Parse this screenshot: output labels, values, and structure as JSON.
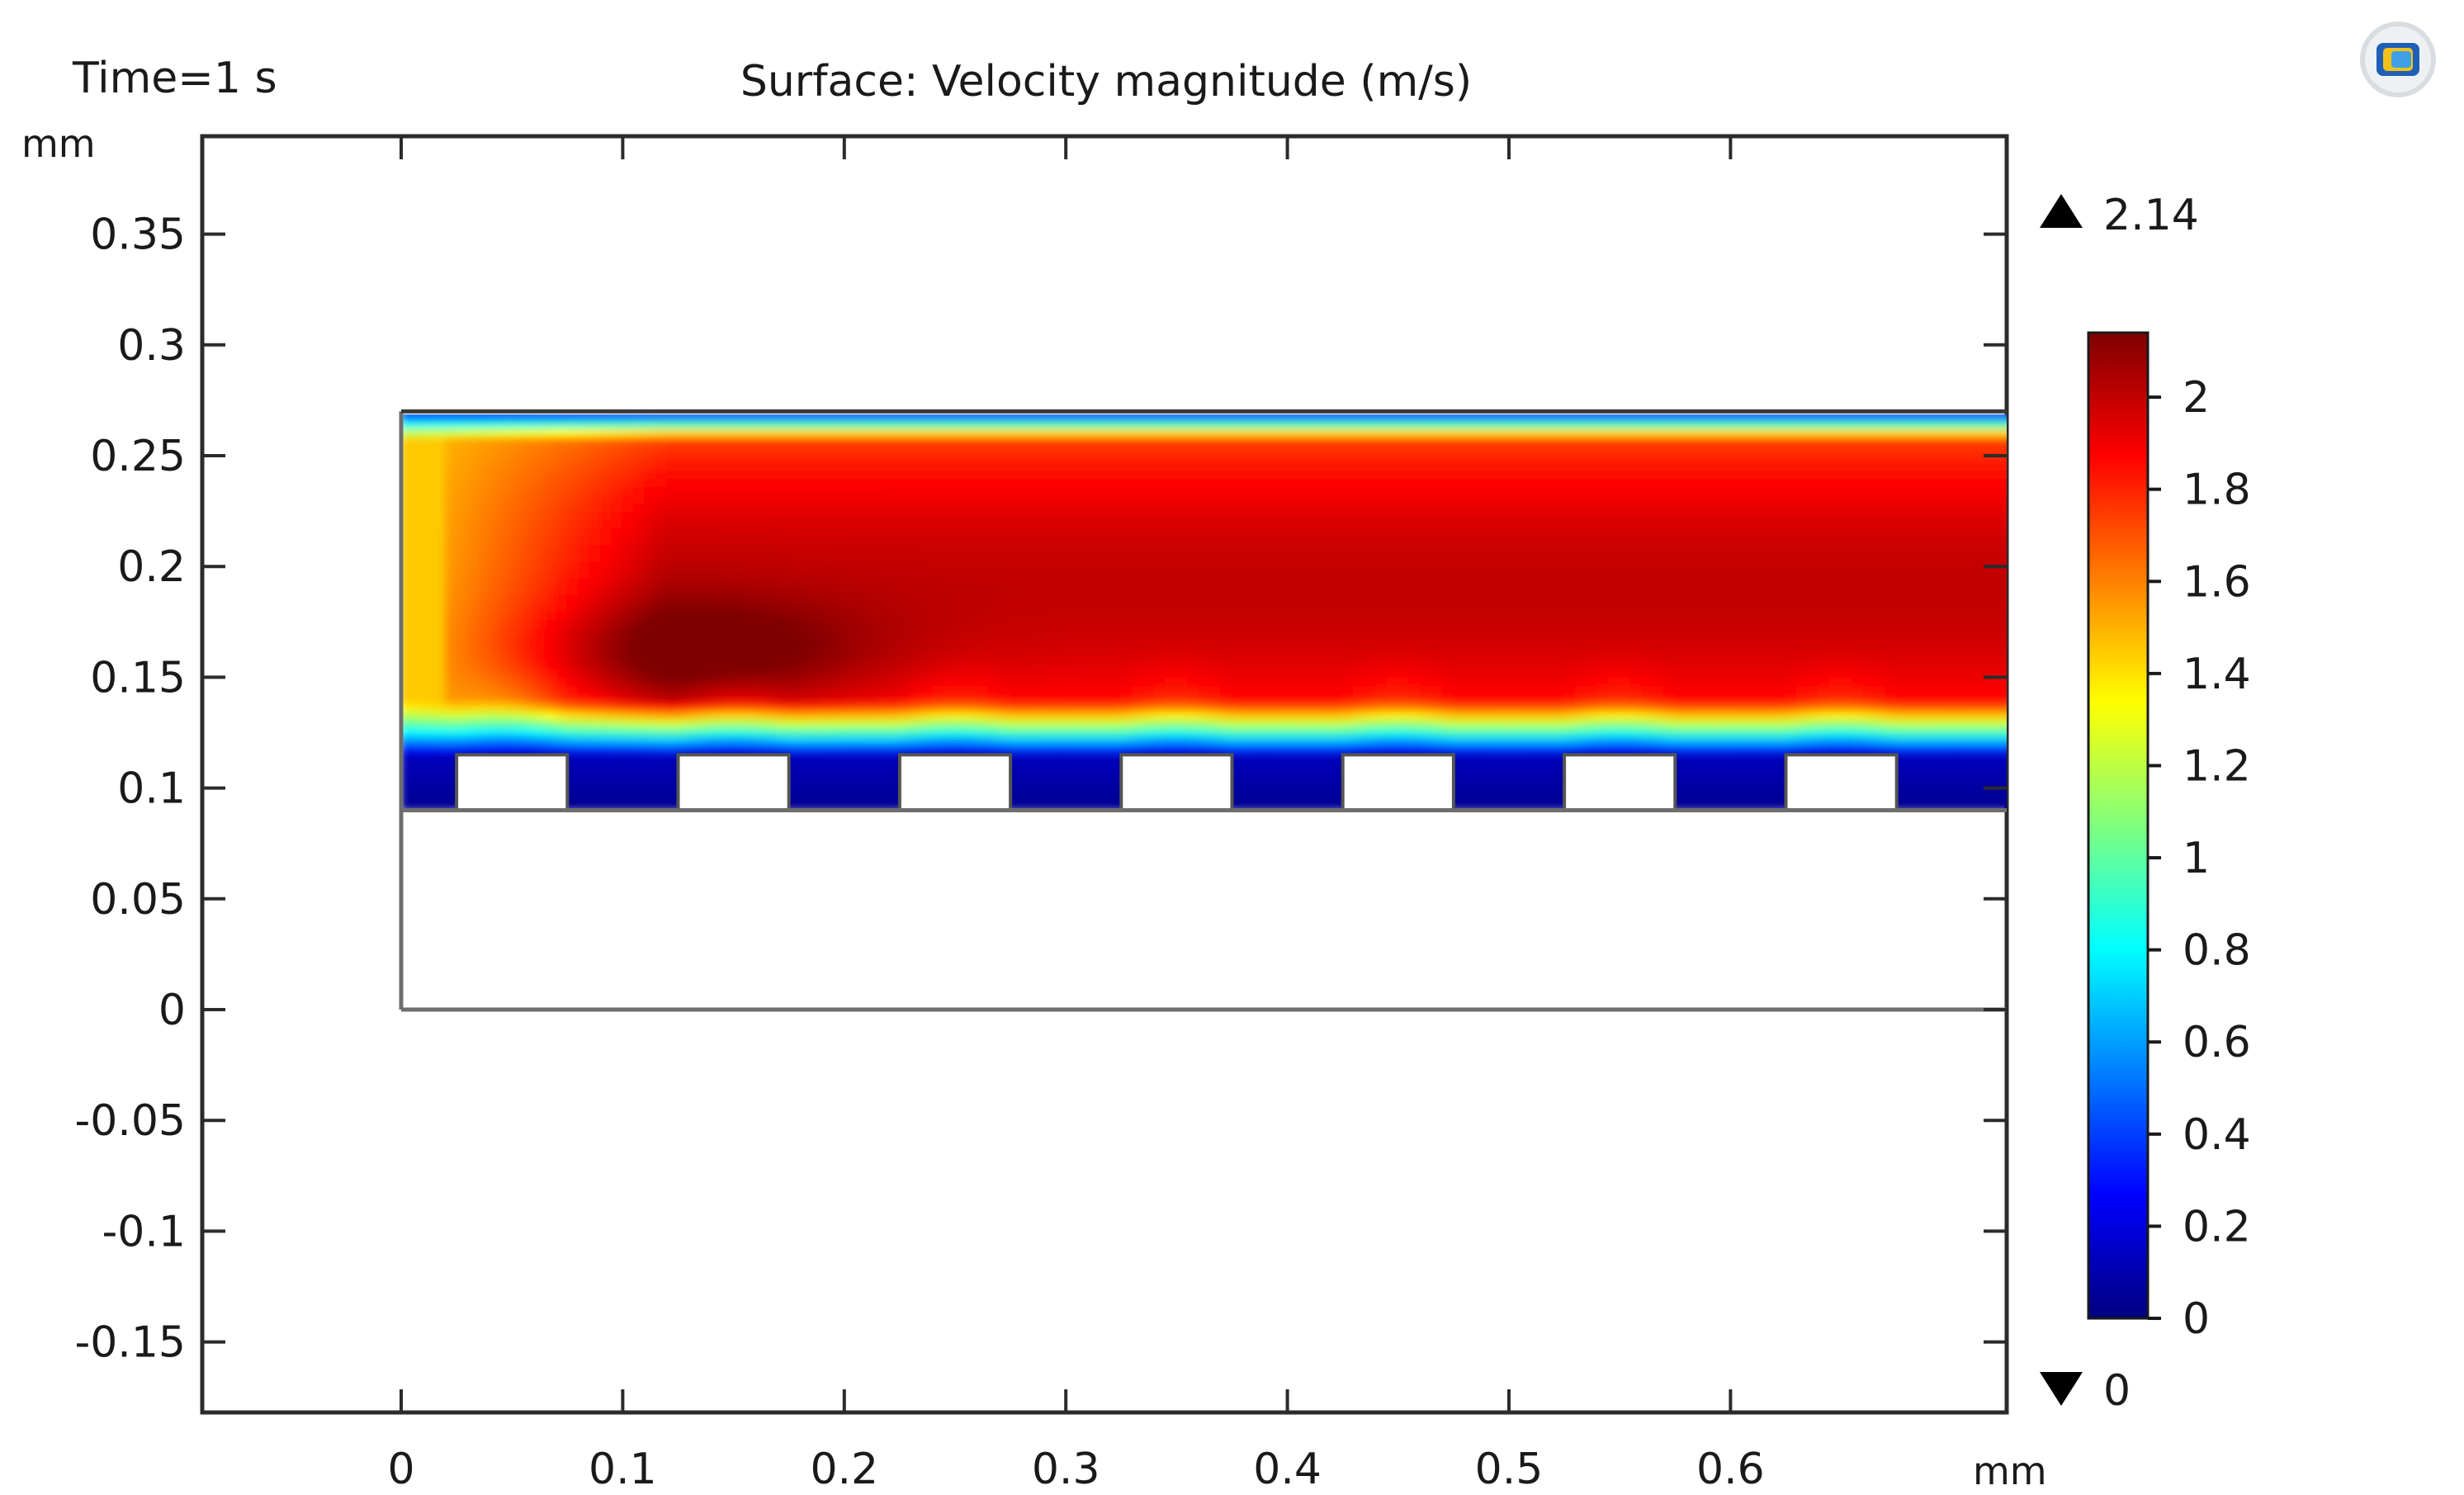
{
  "chart_data": {
    "type": "heatmap",
    "plot_type": "2D surface plot",
    "time_label": "Time=1 s",
    "title": "Surface: Velocity magnitude (m/s)",
    "x_unit": "mm",
    "y_unit": "mm",
    "xlim": [
      -0.09,
      0.73
    ],
    "ylim": [
      -0.18,
      0.395
    ],
    "x_ticks": [
      0,
      0.1,
      0.2,
      0.3,
      0.4,
      0.5,
      0.6
    ],
    "x_tick_labels": [
      "0",
      "0.1",
      "0.2",
      "0.3",
      "0.4",
      "0.5",
      "0.6"
    ],
    "y_ticks": [
      0.35,
      0.3,
      0.25,
      0.2,
      0.15,
      0.1,
      0.05,
      0,
      -0.05,
      -0.1,
      -0.15
    ],
    "y_tick_labels": [
      "0.35",
      "0.3",
      "0.25",
      "0.2",
      "0.15",
      "0.1",
      "0.05",
      "0",
      "-0.05",
      "-0.1",
      "-0.15"
    ],
    "domain": {
      "x_range": [
        0,
        0.73
      ],
      "fluid_channel_y_range": [
        0.09,
        0.27
      ],
      "substrate_y_range": [
        0,
        0.09
      ]
    },
    "obstacles": {
      "count": 7,
      "x_start": [
        0.025,
        0.125,
        0.225,
        0.325,
        0.425,
        0.525,
        0.625
      ],
      "width": 0.05,
      "y_range": [
        0.09,
        0.115
      ]
    },
    "colorbar": {
      "max_label": "2.14",
      "min_label": "0",
      "max": 2.14,
      "min": 0,
      "ticks": [
        2,
        1.8,
        1.6,
        1.4,
        1.2,
        1,
        0.8,
        0.6,
        0.4,
        0.2,
        0
      ],
      "tick_labels": [
        "2",
        "1.8",
        "1.6",
        "1.4",
        "1.2",
        "1",
        "0.8",
        "0.6",
        "0.4",
        "0.2",
        "0"
      ],
      "colormap": [
        "#00007f",
        "#0000ff",
        "#007fff",
        "#00ffff",
        "#7fff7f",
        "#ffff00",
        "#ff7f00",
        "#ff0000",
        "#7f0000"
      ]
    },
    "field_description": {
      "core_velocity_max": 2.14,
      "wall_velocity": 0,
      "inlet_velocity": 1.45,
      "core_center_y": 0.19
    }
  },
  "icons": {
    "app_icon": "comsol-plot-icon"
  }
}
